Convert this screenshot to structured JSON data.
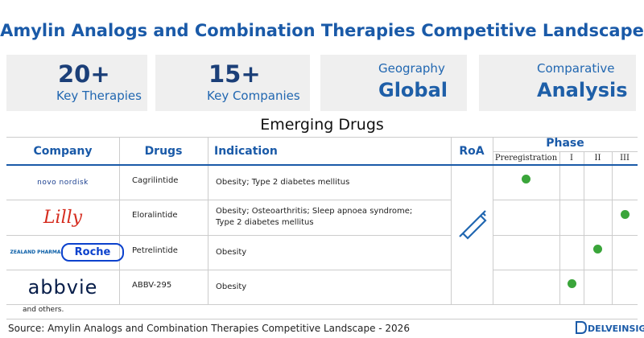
{
  "title": "Amylin Analogs and Combination Therapies Competitive Landscape",
  "stats": [
    {
      "number": "20+",
      "label": "Key Therapies"
    },
    {
      "number": "15+",
      "label": "Key Companies"
    },
    {
      "label": "Geography",
      "value": "Global"
    },
    {
      "label": "Comparative",
      "value": "Analysis"
    }
  ],
  "table": {
    "title": "Emerging Drugs",
    "headers": [
      "Company",
      "Drugs",
      "Indication",
      "RoA",
      "Phase"
    ],
    "phases": [
      "Preregistration",
      "I",
      "II",
      "III"
    ],
    "rows": [
      {
        "company": [
          "novo nordisk"
        ],
        "drug": "Cagrilintide",
        "indication": "Obesity; Type 2 diabetes mellitus",
        "phase": 0
      },
      {
        "company": [
          "Lilly"
        ],
        "drug": "Eloralintide",
        "indication": "Obesity; Osteoarthritis; Sleep apnoea syndrome; Type 2 diabetes mellitus",
        "phase": 3
      },
      {
        "company": [
          "ZEALAND PHARMA",
          "Roche"
        ],
        "drug": "Petrelintide",
        "indication": "Obesity",
        "phase": 2
      },
      {
        "company": [
          "abbvie"
        ],
        "drug": "ABBV-295",
        "indication": "Obesity",
        "phase": 1
      }
    ],
    "footnote": "and others."
  },
  "source": "Source: Amylin Analogs and Combination Therapies Competitive Landscape - 2026",
  "brand": "DELVEINSIGHT"
}
